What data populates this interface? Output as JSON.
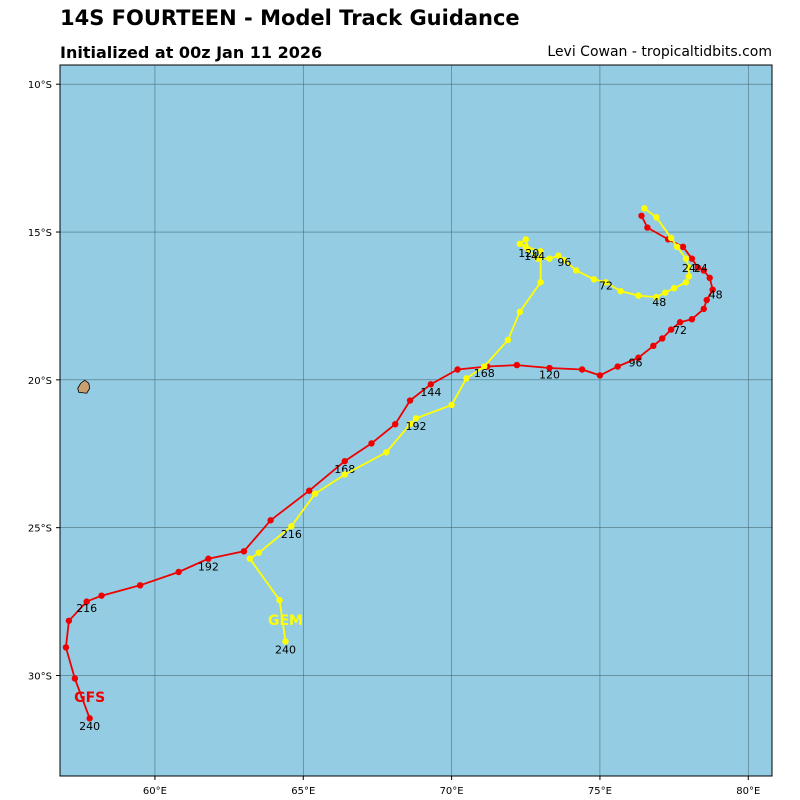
{
  "header": {
    "title": "14S FOURTEEN - Model Track Guidance",
    "initialized": "Initialized at 00z Jan 11 2026",
    "credit": "Levi Cowan - tropicaltidbits.com"
  },
  "colors": {
    "ocean": "#94cde3",
    "land": "#c8a070",
    "grid": "#4a6f7e",
    "gfs": "#ee0000",
    "gem": "#ffff00"
  },
  "map": {
    "lon_range": [
      56.8,
      80.8
    ],
    "lat_range": [
      -9.35,
      -33.4
    ],
    "lon_ticks": [
      60,
      65,
      70,
      75,
      80
    ],
    "lat_ticks": [
      -10,
      -15,
      -20,
      -25,
      -30
    ],
    "lon_tick_labels": [
      "60°E",
      "65°E",
      "70°E",
      "75°E",
      "80°E"
    ],
    "lat_tick_labels": [
      "10°S",
      "15°S",
      "20°S",
      "25°S",
      "30°S"
    ],
    "island": {
      "name": "Mauritius",
      "lon": 57.6,
      "lat": -20.25
    }
  },
  "chart_data": {
    "type": "map-tracks",
    "series": [
      {
        "name": "GFS",
        "color_key": "gfs",
        "points": [
          [
            76.4,
            -14.45
          ],
          [
            76.6,
            -14.85
          ],
          [
            77.3,
            -15.25
          ],
          [
            77.8,
            -15.5
          ],
          [
            78.1,
            -15.9
          ],
          [
            78.3,
            -16.2
          ],
          [
            78.5,
            -16.3
          ],
          [
            78.7,
            -16.55
          ],
          [
            78.8,
            -16.95
          ],
          [
            78.6,
            -17.3
          ],
          [
            78.5,
            -17.6
          ],
          [
            78.1,
            -17.95
          ],
          [
            77.7,
            -18.05
          ],
          [
            77.4,
            -18.3
          ],
          [
            77.1,
            -18.6
          ],
          [
            76.8,
            -18.85
          ],
          [
            76.3,
            -19.25
          ],
          [
            75.6,
            -19.55
          ],
          [
            75.0,
            -19.85
          ],
          [
            74.4,
            -19.65
          ],
          [
            73.3,
            -19.6
          ],
          [
            72.2,
            -19.5
          ],
          [
            71.2,
            -19.55
          ],
          [
            70.2,
            -19.65
          ],
          [
            69.3,
            -20.15
          ],
          [
            68.6,
            -20.7
          ],
          [
            68.1,
            -21.5
          ],
          [
            67.3,
            -22.15
          ],
          [
            66.4,
            -22.75
          ],
          [
            65.2,
            -23.75
          ],
          [
            63.9,
            -24.75
          ],
          [
            63.0,
            -25.8
          ],
          [
            61.8,
            -26.05
          ],
          [
            60.8,
            -26.5
          ],
          [
            59.5,
            -26.95
          ],
          [
            58.2,
            -27.3
          ],
          [
            57.7,
            -27.5
          ],
          [
            57.1,
            -28.15
          ],
          [
            57.0,
            -29.05
          ],
          [
            57.3,
            -30.1
          ],
          [
            57.8,
            -31.45
          ]
        ],
        "labels": [
          {
            "text": "24",
            "lon": 78.4,
            "lat": -16.35
          },
          {
            "text": "48",
            "lon": 78.9,
            "lat": -17.25
          },
          {
            "text": "72",
            "lon": 77.7,
            "lat": -18.45
          },
          {
            "text": "96",
            "lon": 76.2,
            "lat": -19.55
          },
          {
            "text": "120",
            "lon": 73.3,
            "lat": -19.95
          },
          {
            "text": "144",
            "lon": 69.3,
            "lat": -20.55
          },
          {
            "text": "168",
            "lon": 66.4,
            "lat": -23.15
          },
          {
            "text": "192",
            "lon": 61.8,
            "lat": -26.45
          },
          {
            "text": "216",
            "lon": 57.7,
            "lat": -27.85
          },
          {
            "text": "240",
            "lon": 57.8,
            "lat": -31.85
          }
        ],
        "name_label": {
          "lon": 57.8,
          "lat": -30.9
        }
      },
      {
        "name": "GEM",
        "color_key": "gem",
        "points": [
          [
            76.5,
            -14.2
          ],
          [
            76.9,
            -14.5
          ],
          [
            77.4,
            -15.2
          ],
          [
            77.6,
            -15.5
          ],
          [
            77.9,
            -15.9
          ],
          [
            78.0,
            -16.2
          ],
          [
            78.0,
            -16.5
          ],
          [
            77.9,
            -16.7
          ],
          [
            77.5,
            -16.9
          ],
          [
            77.2,
            -17.05
          ],
          [
            76.9,
            -17.2
          ],
          [
            76.3,
            -17.15
          ],
          [
            75.7,
            -17.0
          ],
          [
            75.2,
            -16.7
          ],
          [
            74.8,
            -16.6
          ],
          [
            74.2,
            -16.3
          ],
          [
            73.8,
            -15.95
          ],
          [
            73.6,
            -15.8
          ],
          [
            73.3,
            -15.9
          ],
          [
            72.9,
            -15.9
          ],
          [
            72.6,
            -15.6
          ],
          [
            72.5,
            -15.25
          ],
          [
            72.3,
            -15.4
          ],
          [
            72.5,
            -15.5
          ],
          [
            73.0,
            -15.65
          ],
          [
            73.0,
            -16.7
          ],
          [
            72.3,
            -17.7
          ],
          [
            71.9,
            -18.65
          ],
          [
            71.1,
            -19.55
          ],
          [
            70.5,
            -19.95
          ],
          [
            70.0,
            -20.85
          ],
          [
            68.8,
            -21.3
          ],
          [
            68.6,
            -21.5
          ],
          [
            67.8,
            -22.45
          ],
          [
            66.4,
            -23.2
          ],
          [
            65.4,
            -23.85
          ],
          [
            64.6,
            -24.95
          ],
          [
            63.5,
            -25.85
          ],
          [
            63.2,
            -26.05
          ],
          [
            64.2,
            -27.45
          ],
          [
            64.4,
            -28.85
          ]
        ],
        "labels": [
          {
            "text": "24",
            "lon": 78.0,
            "lat": -16.35
          },
          {
            "text": "48",
            "lon": 77.0,
            "lat": -17.5
          },
          {
            "text": "72",
            "lon": 75.2,
            "lat": -16.95
          },
          {
            "text": "96",
            "lon": 73.8,
            "lat": -16.15
          },
          {
            "text": "120",
            "lon": 72.6,
            "lat": -15.85
          },
          {
            "text": "144",
            "lon": 72.8,
            "lat": -15.95
          },
          {
            "text": "168",
            "lon": 71.1,
            "lat": -19.9
          },
          {
            "text": "192",
            "lon": 68.8,
            "lat": -21.7
          },
          {
            "text": "216",
            "lon": 64.6,
            "lat": -25.35
          },
          {
            "text": "240",
            "lon": 64.4,
            "lat": -29.25
          }
        ],
        "name_label": {
          "lon": 64.4,
          "lat": -28.3
        }
      }
    ]
  }
}
